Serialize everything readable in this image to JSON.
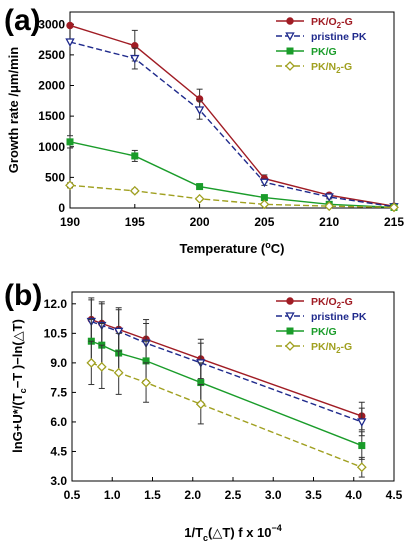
{
  "chart_data": [
    {
      "type": "line",
      "panel": "(a)",
      "xlabel": "Temperature (°C)",
      "xlabel_main": "Temperature (",
      "xlabel_sup": "o",
      "xlabel_end": "C)",
      "ylabel": "Growth rate /μm/min",
      "xlim": [
        190,
        215
      ],
      "ylim": [
        0,
        3200
      ],
      "xticks": [
        190,
        195,
        200,
        205,
        210,
        215
      ],
      "yticks": [
        0,
        500,
        1000,
        1500,
        2000,
        2500,
        3000
      ],
      "legend_position": "top-right",
      "series": [
        {
          "name": "PK/O2-G",
          "legend_main": "PK/O",
          "legend_sub": "2",
          "legend_end": "-G",
          "color": "#a01c24",
          "marker": "circle",
          "dash": "solid",
          "x": [
            190,
            195,
            200,
            205,
            210,
            215
          ],
          "y": [
            2980,
            2650,
            1780,
            480,
            210,
            30
          ],
          "err": [
            0,
            250,
            160,
            60,
            30,
            10
          ]
        },
        {
          "name": "pristine PK",
          "legend_main": "pristine PK",
          "legend_sub": "",
          "legend_end": "",
          "color": "#1f2a8c",
          "marker": "triangle-down-open",
          "dash": "dashed",
          "x": [
            190,
            195,
            200,
            205,
            210,
            215
          ],
          "y": [
            2710,
            2440,
            1600,
            420,
            180,
            20
          ],
          "err": [
            0,
            170,
            150,
            50,
            30,
            10
          ]
        },
        {
          "name": "PK/G",
          "legend_main": "PK/G",
          "legend_sub": "",
          "legend_end": "",
          "color": "#1a9c2a",
          "marker": "square",
          "dash": "solid",
          "x": [
            190,
            195,
            200,
            205,
            210,
            215
          ],
          "y": [
            1080,
            850,
            350,
            170,
            60,
            10
          ],
          "err": [
            100,
            90,
            30,
            20,
            10,
            5
          ]
        },
        {
          "name": "PK/N2-G",
          "legend_main": "PK/N",
          "legend_sub": "2",
          "legend_end": "-G",
          "color": "#a0a020",
          "marker": "diamond-open",
          "dash": "dashed",
          "x": [
            190,
            195,
            200,
            205,
            210,
            215
          ],
          "y": [
            370,
            280,
            150,
            60,
            30,
            10
          ],
          "err": [
            40,
            30,
            20,
            10,
            5,
            5
          ]
        }
      ]
    },
    {
      "type": "line",
      "panel": "(b)",
      "xlabel": "1/Tc(△T) f x 10^-4",
      "xlabel_main": "1/T",
      "xlabel_sub": "c",
      "xlabel_mid": "(△T) f x 10",
      "xlabel_sup": "−4",
      "ylabel": "lnG+U*/(Tc−T)−ln(△T)",
      "ylabel_a": "lnG+U*/(T",
      "ylabel_sub": "c",
      "ylabel_b": "−T )−ln(△T)",
      "xlim": [
        0.5,
        4.5
      ],
      "ylim": [
        3.0,
        12.6
      ],
      "xticks": [
        "0.5",
        "1.0",
        "1.5",
        "2.0",
        "2.5",
        "3.0",
        "3.5",
        "4.0",
        "4.5"
      ],
      "yticks": [
        "3.0",
        "4.5",
        "6.0",
        "7.5",
        "9.0",
        "10.5",
        "12.0"
      ],
      "legend_position": "top-right",
      "series": [
        {
          "name": "PK/O2-G",
          "legend_main": "PK/O",
          "legend_sub": "2",
          "legend_end": "-G",
          "color": "#a01c24",
          "marker": "circle",
          "dash": "solid",
          "x": [
            0.74,
            0.87,
            1.08,
            1.42,
            2.1,
            4.1
          ],
          "y": [
            11.2,
            11.0,
            10.7,
            10.2,
            9.2,
            6.3
          ],
          "err": [
            1.1,
            1.1,
            1.1,
            1.0,
            1.0,
            0.7
          ]
        },
        {
          "name": "pristine PK",
          "legend_main": "pristine PK",
          "legend_sub": "",
          "legend_end": "",
          "color": "#1f2a8c",
          "marker": "triangle-down-open",
          "dash": "dashed",
          "x": [
            0.74,
            0.87,
            1.08,
            1.42,
            2.1,
            4.1
          ],
          "y": [
            11.1,
            10.9,
            10.6,
            10.0,
            9.0,
            6.0
          ],
          "err": [
            1.1,
            1.1,
            1.1,
            1.0,
            1.0,
            0.7
          ]
        },
        {
          "name": "PK/G",
          "legend_main": "PK/G",
          "legend_sub": "",
          "legend_end": "",
          "color": "#1a9c2a",
          "marker": "square",
          "dash": "solid",
          "x": [
            0.74,
            0.87,
            1.08,
            1.42,
            2.1,
            4.1
          ],
          "y": [
            10.1,
            9.9,
            9.5,
            9.1,
            8.0,
            4.8
          ],
          "err": [
            1.1,
            1.1,
            1.0,
            1.0,
            1.0,
            0.7
          ]
        },
        {
          "name": "PK/N2-G",
          "legend_main": "PK/N",
          "legend_sub": "2",
          "legend_end": "-G",
          "color": "#a0a020",
          "marker": "diamond-open",
          "dash": "dashed",
          "x": [
            0.74,
            0.87,
            1.08,
            1.42,
            2.1,
            4.1
          ],
          "y": [
            9.0,
            8.8,
            8.5,
            8.0,
            6.9,
            3.7
          ],
          "err": [
            1.1,
            1.1,
            1.1,
            1.0,
            1.0,
            0.5
          ]
        }
      ]
    }
  ]
}
